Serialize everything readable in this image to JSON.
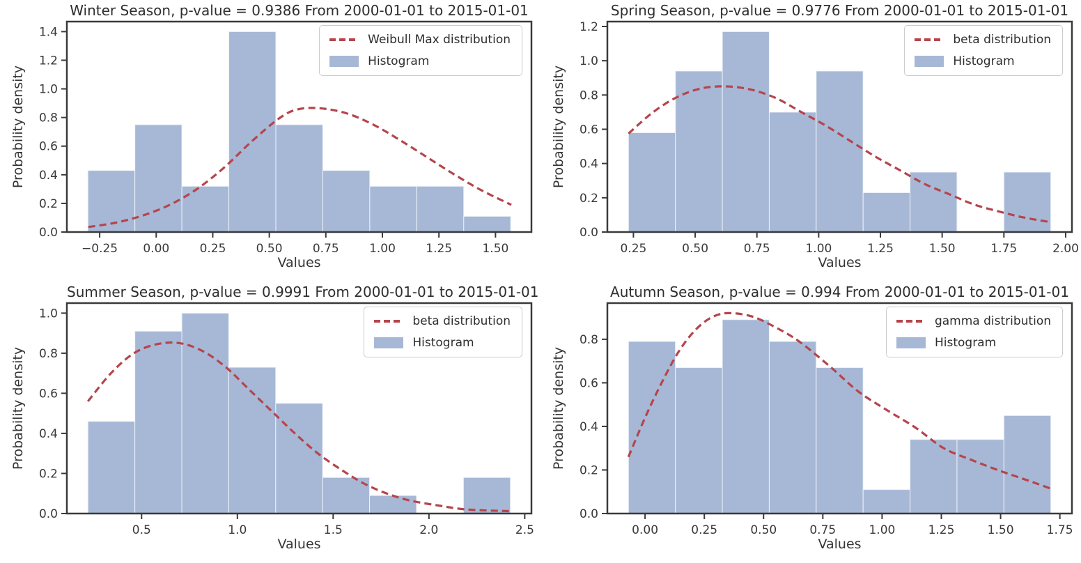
{
  "style": {
    "bar_fill": "#a7b8d6",
    "bar_edge": "#eef2f8",
    "curve_color": "#b5454c",
    "spine_color": "#3a3a3a",
    "tick_color": "#3a3a3a",
    "text_color": "#3a3a3a",
    "legend_border": "#cccccc",
    "background": "#ffffff"
  },
  "chart_data": [
    {
      "type": "bar",
      "subtype": "histogram-with-fit-curve",
      "title": "Winter Season, p-value = 0.9386 From 2000-01-01 to 2015-01-01",
      "xlabel": "Values",
      "ylabel": "Probability density",
      "legend": {
        "curve": "Weibull Max distribution",
        "hist": "Histogram"
      },
      "legend_position": "upper right",
      "grid": false,
      "xlim": [
        -0.395,
        1.659
      ],
      "ylim": [
        0,
        1.47
      ],
      "xticks": [
        -0.25,
        0.0,
        0.25,
        0.5,
        0.75,
        1.0,
        1.25,
        1.5
      ],
      "xtick_labels": [
        "−0.25",
        "0.00",
        "0.25",
        "0.50",
        "0.75",
        "1.00",
        "1.25",
        "1.50"
      ],
      "yticks": [
        0.0,
        0.2,
        0.4,
        0.6,
        0.8,
        1.0,
        1.2,
        1.4
      ],
      "ytick_labels": [
        "0.0",
        "0.2",
        "0.4",
        "0.6",
        "0.8",
        "1.0",
        "1.2",
        "1.4"
      ],
      "bins": {
        "start": -0.302,
        "width": 0.2077,
        "heights": [
          0.43,
          0.75,
          0.32,
          1.4,
          0.75,
          0.43,
          0.32,
          0.32,
          0.11
        ]
      },
      "curve": {
        "x": [
          -0.3,
          -0.18,
          -0.06,
          0.06,
          0.18,
          0.3,
          0.42,
          0.54,
          0.62,
          0.72,
          0.84,
          0.96,
          1.08,
          1.2,
          1.32,
          1.44,
          1.57
        ],
        "y": [
          0.035,
          0.065,
          0.115,
          0.19,
          0.3,
          0.45,
          0.63,
          0.79,
          0.855,
          0.865,
          0.83,
          0.75,
          0.64,
          0.52,
          0.4,
          0.29,
          0.19
        ]
      }
    },
    {
      "type": "bar",
      "subtype": "histogram-with-fit-curve",
      "title": "Spring Season, p-value = 0.9776 From 2000-01-01 to 2015-01-01",
      "xlabel": "Values",
      "ylabel": "Probability density",
      "legend": {
        "curve": "beta distribution",
        "hist": "Histogram"
      },
      "legend_position": "upper right",
      "grid": false,
      "xlim": [
        0.1445,
        2.0255
      ],
      "ylim": [
        0,
        1.2285
      ],
      "xticks": [
        0.25,
        0.5,
        0.75,
        1.0,
        1.25,
        1.5,
        1.75,
        2.0
      ],
      "xtick_labels": [
        "0.25",
        "0.50",
        "0.75",
        "1.00",
        "1.25",
        "1.50",
        "1.75",
        "2.00"
      ],
      "yticks": [
        0.0,
        0.2,
        0.4,
        0.6,
        0.8,
        1.0,
        1.2
      ],
      "ytick_labels": [
        "0.0",
        "0.2",
        "0.4",
        "0.6",
        "0.8",
        "1.0",
        "1.2"
      ],
      "bins": {
        "start": 0.23,
        "width": 0.19,
        "heights": [
          0.58,
          0.94,
          1.17,
          0.7,
          0.94,
          0.23,
          0.35,
          0,
          0.35
        ]
      },
      "curve": {
        "x": [
          0.23,
          0.33,
          0.43,
          0.53,
          0.63,
          0.73,
          0.83,
          0.93,
          1.03,
          1.13,
          1.23,
          1.33,
          1.43,
          1.53,
          1.63,
          1.73,
          1.83,
          1.93
        ],
        "y": [
          0.575,
          0.7,
          0.79,
          0.84,
          0.85,
          0.83,
          0.78,
          0.7,
          0.62,
          0.53,
          0.44,
          0.36,
          0.28,
          0.22,
          0.16,
          0.12,
          0.085,
          0.06
        ]
      }
    },
    {
      "type": "bar",
      "subtype": "histogram-with-fit-curve",
      "title": "Summer Season, p-value = 0.9991 From 2000-01-01 to 2015-01-01",
      "xlabel": "Values",
      "ylabel": "Probability density",
      "legend": {
        "curve": "beta distribution",
        "hist": "Histogram"
      },
      "legend_position": "upper right",
      "grid": false,
      "xlim": [
        0.11,
        2.535
      ],
      "ylim": [
        0,
        1.05
      ],
      "xticks": [
        0.5,
        1.0,
        1.5,
        2.0,
        2.5
      ],
      "xtick_labels": [
        "0.5",
        "1.0",
        "1.5",
        "2.0",
        "2.5"
      ],
      "yticks": [
        0.0,
        0.2,
        0.4,
        0.6,
        0.8,
        1.0
      ],
      "ytick_labels": [
        "0.0",
        "0.2",
        "0.4",
        "0.6",
        "0.8",
        "1.0"
      ],
      "bins": {
        "start": 0.22,
        "width": 0.245,
        "heights": [
          0.46,
          0.91,
          1.0,
          0.73,
          0.55,
          0.18,
          0.09,
          0,
          0.18
        ]
      },
      "curve": {
        "x": [
          0.22,
          0.34,
          0.46,
          0.58,
          0.7,
          0.82,
          0.94,
          1.06,
          1.18,
          1.3,
          1.42,
          1.54,
          1.66,
          1.78,
          1.9,
          2.05,
          2.2,
          2.42
        ],
        "y": [
          0.56,
          0.7,
          0.8,
          0.845,
          0.85,
          0.81,
          0.73,
          0.62,
          0.51,
          0.4,
          0.3,
          0.22,
          0.15,
          0.1,
          0.065,
          0.04,
          0.02,
          0.012
        ]
      }
    },
    {
      "type": "bar",
      "subtype": "histogram-with-fit-curve",
      "title": "Autumn Season, p-value = 0.994 From 2000-01-01 to 2015-01-01",
      "xlabel": "Values",
      "ylabel": "Probability density",
      "legend": {
        "curve": "gamma distribution",
        "hist": "Histogram"
      },
      "legend_position": "upper right",
      "grid": false,
      "xlim": [
        -0.159,
        1.801
      ],
      "ylim": [
        0,
        0.966
      ],
      "xticks": [
        0.0,
        0.25,
        0.5,
        0.75,
        1.0,
        1.25,
        1.5,
        1.75
      ],
      "xtick_labels": [
        "0.00",
        "0.25",
        "0.50",
        "0.75",
        "1.00",
        "1.25",
        "1.50",
        "1.75"
      ],
      "yticks": [
        0.0,
        0.2,
        0.4,
        0.6,
        0.8
      ],
      "ytick_labels": [
        "0.0",
        "0.2",
        "0.4",
        "0.6",
        "0.8"
      ],
      "bins": {
        "start": -0.07,
        "width": 0.198,
        "heights": [
          0.79,
          0.67,
          0.89,
          0.79,
          0.67,
          0.11,
          0.34,
          0.34,
          0.45
        ]
      },
      "curve": {
        "x": [
          -0.07,
          0.0,
          0.07,
          0.14,
          0.21,
          0.28,
          0.35,
          0.45,
          0.55,
          0.65,
          0.78,
          0.9,
          1.02,
          1.14,
          1.26,
          1.38,
          1.5,
          1.62,
          1.71
        ],
        "y": [
          0.26,
          0.44,
          0.6,
          0.74,
          0.84,
          0.9,
          0.92,
          0.905,
          0.855,
          0.79,
          0.675,
          0.56,
          0.475,
          0.395,
          0.3,
          0.245,
          0.195,
          0.15,
          0.115
        ]
      }
    }
  ]
}
